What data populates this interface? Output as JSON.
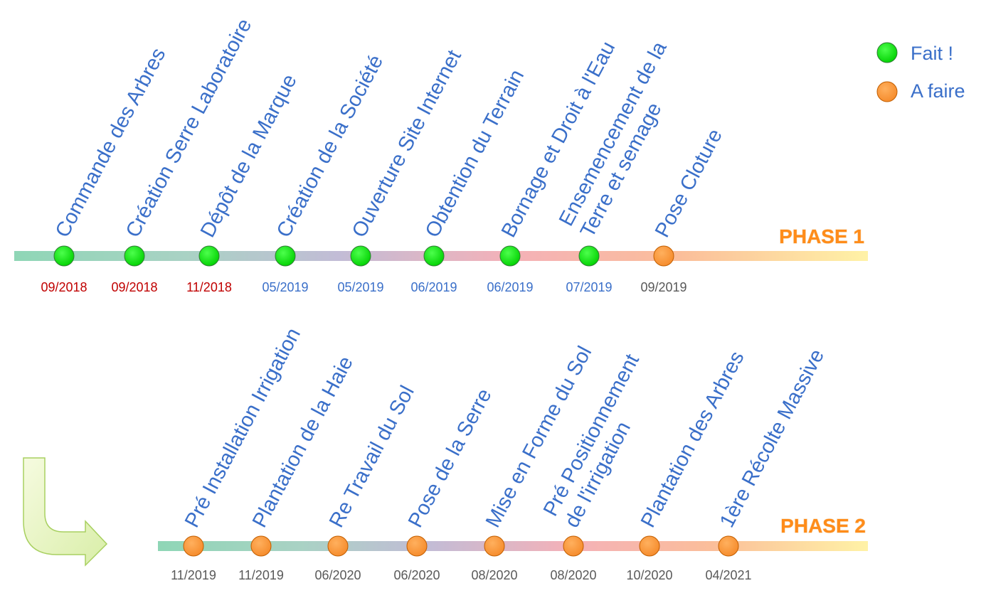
{
  "legend": [
    {
      "label": "Fait !",
      "status": "done"
    },
    {
      "label": "A faire",
      "status": "todo"
    }
  ],
  "colors": {
    "done": "#00e000",
    "todo": "#ff9a3c",
    "label": "#3a6fc9",
    "date_red": "#c00000",
    "date_blue": "#3a6fc9",
    "date_gray": "#595959",
    "phase": "#ff8c1a"
  },
  "phases": [
    {
      "name": "PHASE 1",
      "milestones": [
        {
          "label": [
            "Commande des Arbres"
          ],
          "date": "09/2018",
          "status": "done",
          "date_color": "date_red"
        },
        {
          "label": [
            "Création Serre Laboratoire"
          ],
          "date": "09/2018",
          "status": "done",
          "date_color": "date_red"
        },
        {
          "label": [
            "Dépôt de la Marque"
          ],
          "date": "11/2018",
          "status": "done",
          "date_color": "date_red"
        },
        {
          "label": [
            "Création de la Société"
          ],
          "date": "05/2019",
          "status": "done",
          "date_color": "date_blue"
        },
        {
          "label": [
            "Ouverture Site Internet"
          ],
          "date": "05/2019",
          "status": "done",
          "date_color": "date_blue"
        },
        {
          "label": [
            "Obtention du Terrain"
          ],
          "date": "06/2019",
          "status": "done",
          "date_color": "date_blue"
        },
        {
          "label": [
            "Bornage et Droit à l'Eau"
          ],
          "date": "06/2019",
          "status": "done",
          "date_color": "date_blue"
        },
        {
          "label": [
            "Ensemencement de la",
            "Terre et semage"
          ],
          "date": "07/2019",
          "status": "done",
          "date_color": "date_blue"
        },
        {
          "label": [
            "Pose Cloture"
          ],
          "date": "09/2019",
          "status": "todo",
          "date_color": "date_gray"
        }
      ]
    },
    {
      "name": "PHASE 2",
      "milestones": [
        {
          "label": [
            "Pré Installation Irrigation"
          ],
          "date": "11/2019",
          "status": "todo",
          "date_color": "date_gray"
        },
        {
          "label": [
            "Plantation de la Haie"
          ],
          "date": "11/2019",
          "status": "todo",
          "date_color": "date_gray"
        },
        {
          "label": [
            "Re Travail du Sol"
          ],
          "date": "06/2020",
          "status": "todo",
          "date_color": "date_gray"
        },
        {
          "label": [
            "Pose de la Serre"
          ],
          "date": "06/2020",
          "status": "todo",
          "date_color": "date_gray"
        },
        {
          "label": [
            "Mise en Forme du Sol"
          ],
          "date": "08/2020",
          "status": "todo",
          "date_color": "date_gray"
        },
        {
          "label": [
            "Pré Positionnement",
            "de l'irrigation"
          ],
          "date": "08/2020",
          "status": "todo",
          "date_color": "date_gray"
        },
        {
          "label": [
            "Plantation des Arbres"
          ],
          "date": "10/2020",
          "status": "todo",
          "date_color": "date_gray"
        },
        {
          "label": [
            "1ère Récolte Massive"
          ],
          "date": "04/2021",
          "status": "todo",
          "date_color": "date_gray"
        }
      ]
    }
  ]
}
